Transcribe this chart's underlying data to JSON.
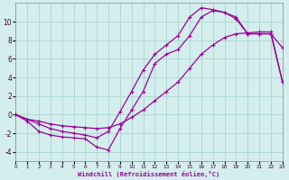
{
  "xlabel": "Windchill (Refroidissement éolien,°C)",
  "background_color": "#d4eeed",
  "grid_color": "#afd8d5",
  "line_color": "#990099",
  "xlim": [
    0,
    23
  ],
  "ylim": [
    -5,
    12
  ],
  "xticks": [
    0,
    1,
    2,
    3,
    4,
    5,
    6,
    7,
    8,
    9,
    10,
    11,
    12,
    13,
    14,
    15,
    16,
    17,
    18,
    19,
    20,
    21,
    22,
    23
  ],
  "yticks": [
    -4,
    -2,
    0,
    2,
    4,
    6,
    8,
    10
  ],
  "line1_x": [
    0,
    1,
    2,
    3,
    4,
    5,
    6,
    7,
    8,
    9,
    10,
    11,
    12,
    13,
    14,
    15,
    16,
    17,
    18,
    19,
    20,
    21,
    22,
    23
  ],
  "line1_y": [
    0,
    -0.7,
    -1.8,
    -2.2,
    -2.4,
    -2.5,
    -2.6,
    -3.5,
    -3.8,
    -1.5,
    0.5,
    2.5,
    5.5,
    6.5,
    7.0,
    8.5,
    10.5,
    11.2,
    11.0,
    10.5,
    8.7,
    8.7,
    8.7,
    7.2
  ],
  "line2_x": [
    0,
    1,
    2,
    3,
    4,
    5,
    6,
    7,
    8,
    9,
    10,
    11,
    12,
    13,
    14,
    15,
    16,
    17,
    18,
    19,
    20,
    21,
    22,
    23
  ],
  "line2_y": [
    0,
    -0.5,
    -0.7,
    -1.0,
    -1.2,
    -1.3,
    -1.4,
    -1.5,
    -1.4,
    -1.0,
    -0.3,
    0.5,
    1.5,
    2.5,
    3.5,
    5.0,
    6.5,
    7.5,
    8.3,
    8.7,
    8.8,
    8.9,
    8.9,
    3.5
  ],
  "line3_x": [
    0,
    2,
    3,
    4,
    5,
    6,
    7,
    8,
    9,
    10,
    11,
    12,
    13,
    14,
    15,
    16,
    17,
    18,
    19,
    20,
    21,
    22,
    23
  ],
  "line3_y": [
    0,
    -1.0,
    -1.5,
    -1.8,
    -2.0,
    -2.2,
    -2.5,
    -1.8,
    0.3,
    2.5,
    4.8,
    6.5,
    7.5,
    8.5,
    10.5,
    11.5,
    11.3,
    11.0,
    10.3,
    8.7,
    8.7,
    8.7,
    3.5
  ]
}
